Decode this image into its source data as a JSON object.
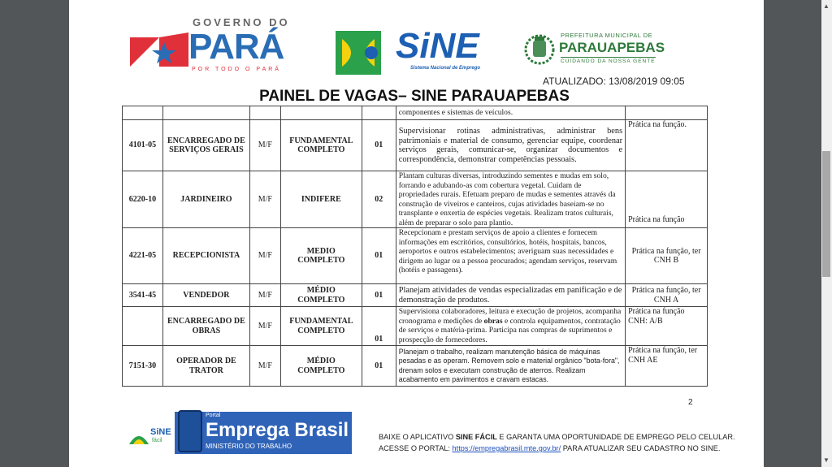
{
  "header": {
    "logo_para": {
      "top": "GOVERNO DO",
      "main": "PARÁ",
      "tagline": "POR TODO O PARÁ"
    },
    "logo_sine": {
      "main": "SiNE",
      "sub": "Sistema Nacional de Emprego"
    },
    "logo_prefeitura": {
      "top": "PREFEITURA MUNICIPAL DE",
      "main": "PARAUAPEBAS",
      "tagline": "CUIDANDO DA NOSSA GENTE"
    },
    "updated": "ATUALIZADO: 13/08/2019 09:05",
    "title": "PAINEL DE VAGAS– SINE PARAUAPEBAS"
  },
  "table": {
    "rows": [
      {
        "code": "",
        "role": "",
        "sex": "",
        "education": "",
        "qty": "",
        "description": "componentes e sistemas de veículos.",
        "requirements": ""
      },
      {
        "code": "4101-05",
        "role": "ENCARREGADO DE SERVIÇOS GERAIS",
        "sex": "M/F",
        "education": "FUNDAMENTAL COMPLETO",
        "qty": "01",
        "description": "Supervisionar rotinas administrativas, administrar bens patrimoniais e material de consumo, gerenciar equipe, coordenar serviços gerais, comunicar-se, organizar documentos e correspondência, demonstrar competências pessoais.",
        "requirements": "Prática na função."
      },
      {
        "code": "6220-10",
        "role": "JARDINEIRO",
        "sex": "M/F",
        "education": "INDIFERE",
        "qty": "02",
        "description": "Plantam culturas diversas, introduzindo sementes e mudas em solo, forrando e adubando-as com cobertura vegetal. Cuidam de propriedades rurais. Efetuam preparo de mudas e sementes através da construção de viveiros e canteiros, cujas atividades baseiam-se no transplante e enxertia de espécies vegetais. Realizam tratos culturais, além de preparar o solo para plantio.",
        "requirements": "Prática na função"
      },
      {
        "code": "4221-05",
        "role": "RECEPCIONISTA",
        "sex": "M/F",
        "education": "MEDIO COMPLETO",
        "qty": "01",
        "description": "Recepcionam e prestam serviços de apoio a clientes e fornecem informações em escritórios, consultórios, hotéis, hospitais, bancos, aeroportos e outros estabelecimentos; averiguam suas necessidades e dirigem ao lugar ou a pessoa procurados; agendam serviços, reservam (hotéis e passagens).",
        "requirements": "Prática na função, ter CNH B"
      },
      {
        "code": "3541-45",
        "role": "VENDEDOR",
        "sex": "M/F",
        "education": "MÉDIO COMPLETO",
        "qty": "01",
        "description": "Planejam atividades de vendas especializadas em panificação e de demonstração de produtos.",
        "requirements": "Prática na função, ter CNH A"
      },
      {
        "code": "",
        "role": "ENCARREGADO DE OBRAS",
        "sex": "M/F",
        "education": "FUNDAMENTAL COMPLETO",
        "qty": "01",
        "description_pre": "Supervisiona colaboradores, leitura e execução de projetos, acompanha cronograma e medições de ",
        "description_bold": "obras",
        "description_post": " e controla equipamentos, contratação de serviços e matéria-prima. Participa nas compras de suprimentos e prospecção de fornecedores.",
        "requirements": "Prática na função CNH: A/B"
      },
      {
        "code": "7151-30",
        "role": "OPERADOR DE TRATOR",
        "sex": "M/F",
        "education": "MÉDIO COMPLETO",
        "qty": "01",
        "description": "Planejam o trabalho, realizam manutenção básica de máquinas pesadas e as operam. Removem solo e material orgânico \"bota-fora\", drenam solos e executam construção de aterros. Realizam acabamento em pavimentos e cravam estacas.",
        "requirements": "Prática na função, ter CNH AE"
      }
    ]
  },
  "page_number": "2",
  "footer": {
    "sine_facil": {
      "main": "SiNE",
      "sub": "fácil"
    },
    "portal_label": "Portal",
    "portal_title": "Emprega Brasil",
    "ministry": "MINISTÉRIO DO TRABALHO",
    "line1_pre": "BAIXE O APLICATIVO ",
    "line1_bold": "SINE FÁCIL",
    "line1_post": " E GARANTA UMA OPORTUNIDADE DE EMPREGO PELO CELULAR.",
    "line2_pre": "ACESSE O PORTAL: ",
    "line2_link": "https://empregabrasil.mte.gov.br/",
    "line2_post": " PARA ATUALIZAR SEU CADASTRO NO SINE."
  },
  "colors": {
    "viewer_bg": "#525659",
    "para_blue": "#2a6db5",
    "sine_blue": "#1d5fb3",
    "prefeitura_green": "#2d7a3a",
    "link": "#1a4fc0"
  }
}
